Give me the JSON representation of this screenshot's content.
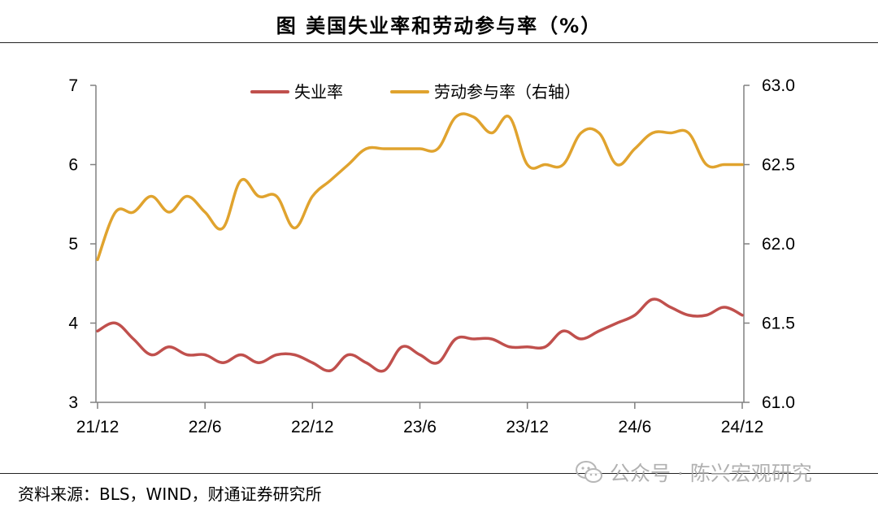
{
  "title": "图  美国失业率和劳动参与率（%）",
  "source": "资料来源：BLS，WIND，财通证券研究所",
  "watermark": "公众号 · 陈兴宏观研究",
  "colors": {
    "unemployment": "#c0504d",
    "participation": "#e0a32e",
    "axis": "#808080"
  },
  "chart_data": {
    "type": "line",
    "title": "美国失业率和劳动参与率（%）",
    "x_tick_labels": [
      "21/12",
      "22/6",
      "22/12",
      "23/6",
      "23/12",
      "24/6",
      "24/12"
    ],
    "x_months": [
      "21/12",
      "22/1",
      "22/2",
      "22/3",
      "22/4",
      "22/5",
      "22/6",
      "22/7",
      "22/8",
      "22/9",
      "22/10",
      "22/11",
      "22/12",
      "23/1",
      "23/2",
      "23/3",
      "23/4",
      "23/5",
      "23/6",
      "23/7",
      "23/8",
      "23/9",
      "23/10",
      "23/11",
      "23/12",
      "24/1",
      "24/2",
      "24/3",
      "24/4",
      "24/5",
      "24/6",
      "24/7",
      "24/8",
      "24/9",
      "24/10",
      "24/11",
      "24/12"
    ],
    "y_left": {
      "min": 3,
      "max": 7,
      "ticks": [
        "3",
        "4",
        "5",
        "6",
        "7"
      ]
    },
    "y_right": {
      "min": 61.0,
      "max": 63.0,
      "ticks": [
        "61.0",
        "61.5",
        "62.0",
        "62.5",
        "63.0"
      ]
    },
    "legend": {
      "position": "top-center"
    },
    "series": [
      {
        "name": "失业率",
        "axis": "left",
        "color": "#c0504d",
        "values": [
          3.9,
          4.0,
          3.8,
          3.6,
          3.7,
          3.6,
          3.6,
          3.5,
          3.6,
          3.5,
          3.6,
          3.6,
          3.5,
          3.4,
          3.6,
          3.5,
          3.4,
          3.7,
          3.6,
          3.5,
          3.8,
          3.8,
          3.8,
          3.7,
          3.7,
          3.7,
          3.9,
          3.8,
          3.9,
          4.0,
          4.1,
          4.3,
          4.2,
          4.1,
          4.1,
          4.2,
          4.1
        ]
      },
      {
        "name": "劳动参与率（右轴）",
        "axis": "right",
        "color": "#e0a32e",
        "values": [
          61.9,
          62.2,
          62.2,
          62.3,
          62.2,
          62.3,
          62.2,
          62.1,
          62.4,
          62.3,
          62.3,
          62.1,
          62.3,
          62.4,
          62.5,
          62.6,
          62.6,
          62.6,
          62.6,
          62.6,
          62.8,
          62.8,
          62.7,
          62.8,
          62.5,
          62.5,
          62.5,
          62.7,
          62.7,
          62.5,
          62.6,
          62.7,
          62.7,
          62.7,
          62.5,
          62.5,
          62.5
        ]
      }
    ]
  }
}
